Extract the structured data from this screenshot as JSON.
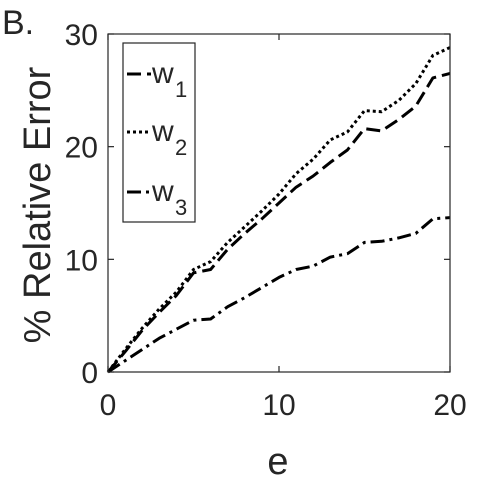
{
  "panel_label": "B.",
  "chart_data": {
    "type": "line",
    "xlabel": "e",
    "ylabel": "% Relative Error",
    "xlim": [
      0,
      20
    ],
    "ylim": [
      0,
      30
    ],
    "xticks": [
      "0",
      "10",
      "20"
    ],
    "yticks": [
      "0",
      "10",
      "20",
      "30"
    ],
    "grid": false,
    "legend_position": "top-left",
    "series": [
      {
        "name": "w",
        "subscript": "1",
        "dash": "dashed",
        "color": "#000000",
        "x": [
          0,
          1,
          2,
          3,
          4,
          5,
          6,
          7,
          8,
          9,
          10,
          11,
          12,
          13,
          14,
          15,
          16,
          17,
          18,
          19,
          20
        ],
        "y": [
          0,
          1.8,
          3.7,
          5.3,
          6.8,
          8.8,
          9.1,
          10.9,
          12.3,
          13.6,
          15.0,
          16.4,
          17.4,
          18.6,
          19.7,
          21.6,
          21.4,
          22.4,
          23.6,
          26.1,
          26.5
        ]
      },
      {
        "name": "w",
        "subscript": "2",
        "dash": "dotted",
        "color": "#000000",
        "x": [
          0,
          1,
          2,
          3,
          4,
          5,
          6,
          7,
          8,
          9,
          10,
          11,
          12,
          13,
          14,
          15,
          16,
          17,
          18,
          19,
          20
        ],
        "y": [
          0,
          2.0,
          3.9,
          5.6,
          7.1,
          9.1,
          9.8,
          11.5,
          12.9,
          14.3,
          15.8,
          17.6,
          18.9,
          20.6,
          21.3,
          23.2,
          23.1,
          24.1,
          25.6,
          28.1,
          28.8
        ]
      },
      {
        "name": "w",
        "subscript": "3",
        "dash": "dashdot",
        "color": "#000000",
        "x": [
          0,
          1,
          2,
          3,
          4,
          5,
          6,
          7,
          8,
          9,
          10,
          11,
          12,
          13,
          14,
          15,
          16,
          17,
          18,
          19,
          20
        ],
        "y": [
          0,
          1.0,
          2.0,
          3.0,
          3.8,
          4.6,
          4.7,
          5.8,
          6.6,
          7.5,
          8.4,
          9.1,
          9.4,
          10.2,
          10.5,
          11.5,
          11.6,
          11.9,
          12.3,
          13.6,
          13.7
        ]
      }
    ]
  }
}
